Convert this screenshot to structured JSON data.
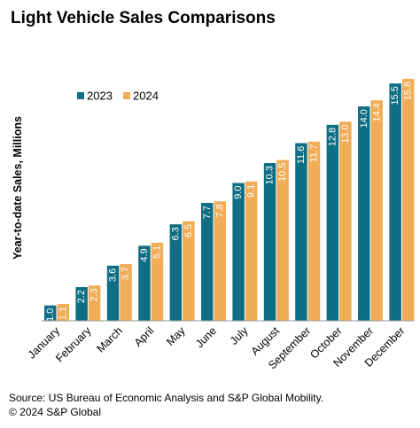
{
  "title": "Light Vehicle Sales Comparisons",
  "source": "Source: US Bureau of Economic Analysis and S&P Global Mobility.",
  "copyright": "© 2024 S&P Global",
  "chart_data": {
    "type": "bar",
    "ylabel": "Year-to-date Sales, Millions",
    "categories": [
      "January",
      "February",
      "March",
      "April",
      "May",
      "June",
      "July",
      "August",
      "September",
      "October",
      "November",
      "December"
    ],
    "series": [
      {
        "name": "2023",
        "color": "#0f6e84",
        "values": [
          1.0,
          2.2,
          3.6,
          4.9,
          6.3,
          7.7,
          9.0,
          10.3,
          11.6,
          12.8,
          14.0,
          15.5
        ]
      },
      {
        "name": "2024",
        "color": "#f0ac57",
        "values": [
          1.1,
          2.3,
          3.7,
          5.1,
          6.5,
          7.8,
          9.1,
          10.5,
          11.7,
          13.0,
          14.4,
          15.8
        ]
      }
    ],
    "data_labels": [
      [
        "1.0",
        "2.2",
        "3.6",
        "4.9",
        "6.3",
        "7.7",
        "9.0",
        "10.3",
        "11.6",
        "12.8",
        "14.0",
        "15.5"
      ],
      [
        "1.1",
        "2.3",
        "3.7",
        "5.1",
        "6.5",
        "7.8",
        "9.1",
        "10.5",
        "11.7",
        "13.0",
        "14.4",
        "15.8"
      ]
    ],
    "legend_position": "top-left",
    "grid": false,
    "ylim": [
      0,
      16
    ]
  }
}
